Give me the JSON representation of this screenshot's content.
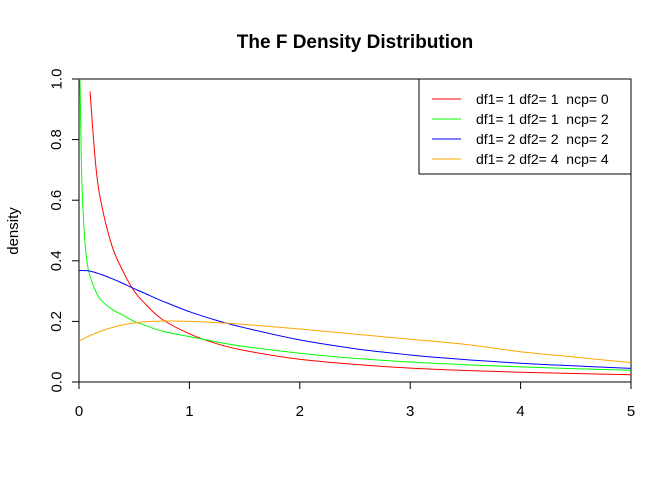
{
  "chart_data": {
    "type": "line",
    "title": "The F Density Distribution",
    "xlabel": "",
    "ylabel": "density",
    "xlim": [
      0,
      5
    ],
    "ylim": [
      0,
      1
    ],
    "x_ticks": [
      "0",
      "1",
      "2",
      "3",
      "4",
      "5"
    ],
    "y_ticks": [
      "0.0",
      "0.2",
      "0.4",
      "0.6",
      "0.8",
      "1.0"
    ],
    "grid": false,
    "legend_position": "top-right",
    "series": [
      {
        "name": "df1= 1 df2= 1  ncp= 0",
        "color": "#ff0000",
        "x": [
          0.1,
          0.15,
          0.2,
          0.3,
          0.4,
          0.5,
          0.6,
          0.75,
          1.0,
          1.25,
          1.5,
          2.0,
          2.5,
          3.0,
          3.5,
          4.0,
          4.5,
          5.0
        ],
        "y": [
          0.959,
          0.721,
          0.593,
          0.448,
          0.364,
          0.3,
          0.258,
          0.208,
          0.159,
          0.126,
          0.104,
          0.075,
          0.058,
          0.046,
          0.038,
          0.032,
          0.028,
          0.024
        ]
      },
      {
        "name": "df1= 1 df2= 1  ncp= 2",
        "color": "#00ff00",
        "x": [
          0.005,
          0.01,
          0.02,
          0.03,
          0.05,
          0.075,
          0.1,
          0.15,
          0.2,
          0.3,
          0.4,
          0.5,
          0.6,
          0.75,
          1.0,
          1.25,
          1.5,
          2.0,
          2.5,
          3.0,
          3.5,
          4.0,
          4.5,
          5.0
        ],
        "y": [
          1.0,
          0.98,
          0.75,
          0.62,
          0.48,
          0.39,
          0.35,
          0.3,
          0.27,
          0.24,
          0.22,
          0.2,
          0.187,
          0.168,
          0.15,
          0.132,
          0.117,
          0.095,
          0.078,
          0.066,
          0.057,
          0.05,
          0.044,
          0.039
        ]
      },
      {
        "name": "df1= 2 df2= 2  ncp= 2",
        "color": "#0000ff",
        "x": [
          0.0,
          0.1,
          0.2,
          0.3,
          0.4,
          0.5,
          0.6,
          0.75,
          1.0,
          1.25,
          1.5,
          2.0,
          2.5,
          3.0,
          3.5,
          4.0,
          4.5,
          5.0
        ],
        "y": [
          0.368,
          0.366,
          0.355,
          0.341,
          0.325,
          0.308,
          0.292,
          0.268,
          0.232,
          0.203,
          0.179,
          0.139,
          0.11,
          0.089,
          0.074,
          0.062,
          0.053,
          0.045
        ]
      },
      {
        "name": "df1= 2 df2= 4  ncp= 4",
        "color": "#ffa500",
        "x": [
          0.0,
          0.1,
          0.2,
          0.3,
          0.4,
          0.5,
          0.6,
          0.75,
          1.0,
          1.25,
          1.5,
          2.0,
          2.5,
          3.0,
          3.5,
          4.0,
          4.5,
          5.0
        ],
        "y": [
          0.135,
          0.153,
          0.168,
          0.18,
          0.189,
          0.195,
          0.199,
          0.201,
          0.2,
          0.196,
          0.19,
          0.175,
          0.158,
          0.141,
          0.124,
          0.1,
          0.082,
          0.064
        ]
      }
    ]
  }
}
